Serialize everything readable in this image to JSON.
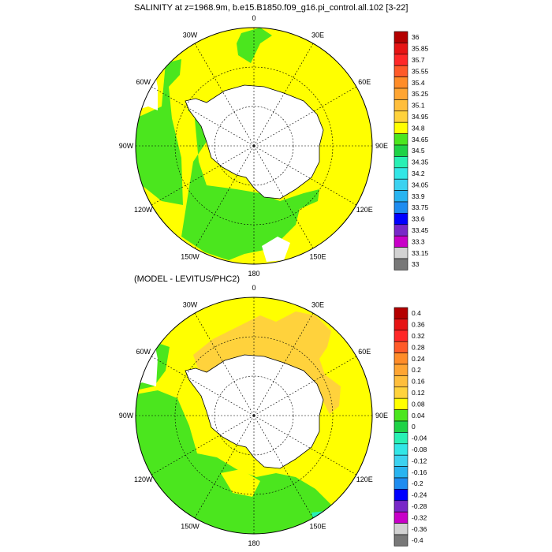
{
  "panels": [
    {
      "title": "SALINITY at z=1968.9m, b.e15.B1850.f09_g16.pi_control.all.102 [3-22]",
      "lon_labels": [
        "0",
        "30E",
        "60E",
        "90E",
        "120E",
        "150E",
        "180",
        "150W",
        "120W",
        "90W",
        "60W",
        "30W"
      ],
      "colorbar": {
        "labels": [
          "36",
          "35.85",
          "35.7",
          "35.55",
          "35.4",
          "35.25",
          "35.1",
          "34.95",
          "34.8",
          "34.65",
          "34.5",
          "34.35",
          "34.2",
          "34.05",
          "33.9",
          "33.75",
          "33.6",
          "33.45",
          "33.3",
          "33.15",
          "33"
        ],
        "colors": [
          "#b40000",
          "#e61414",
          "#ff2828",
          "#ff5a28",
          "#ff8c28",
          "#ffa532",
          "#ffbe3c",
          "#ffd23c",
          "#ffff00",
          "#4be61e",
          "#1ed246",
          "#28f0b4",
          "#32e6e6",
          "#3cd2f0",
          "#28b4f0",
          "#1e8cf0",
          "#0000ff",
          "#7828c8",
          "#c800c8",
          "#d2d2d2",
          "#787878"
        ]
      }
    },
    {
      "title": "(MODEL - LEVITUS/PHC2)",
      "lon_labels": [
        "0",
        "30E",
        "60E",
        "90E",
        "120E",
        "150E",
        "180",
        "150W",
        "120W",
        "90W",
        "60W",
        "30W"
      ],
      "colorbar": {
        "labels": [
          "0.4",
          "0.36",
          "0.32",
          "0.28",
          "0.24",
          "0.2",
          "0.16",
          "0.12",
          "0.08",
          "0.04",
          "0",
          "-0.04",
          "-0.08",
          "-0.12",
          "-0.16",
          "-0.2",
          "-0.24",
          "-0.28",
          "-0.32",
          "-0.36",
          "-0.4"
        ],
        "colors": [
          "#b40000",
          "#e61414",
          "#ff2828",
          "#ff5a28",
          "#ff8c28",
          "#ffa532",
          "#ffbe3c",
          "#ffd23c",
          "#ffff00",
          "#4be61e",
          "#1ed246",
          "#28f0b4",
          "#32e6e6",
          "#3cd2f0",
          "#28b4f0",
          "#1e8cf0",
          "#0000ff",
          "#7828c8",
          "#c800c8",
          "#d2d2d2",
          "#787878"
        ]
      }
    }
  ],
  "chart_data": [
    {
      "type": "heatmap",
      "title": "SALINITY at z=1968.9m, b.e15.B1850.f09_g16.pi_control.all.102 [3-22]",
      "projection": "south polar stereographic",
      "lon_labels": [
        "0",
        "30E",
        "60E",
        "90E",
        "120E",
        "150E",
        "180",
        "150W",
        "120W",
        "90W",
        "60W",
        "30W"
      ],
      "levels": [
        33,
        33.15,
        33.3,
        33.45,
        33.6,
        33.75,
        33.9,
        34.05,
        34.2,
        34.35,
        34.5,
        34.65,
        34.8,
        34.95,
        35.1,
        35.25,
        35.4,
        35.55,
        35.7,
        35.85,
        36
      ],
      "dominant_ranges": [
        "34.65-34.8 (green) south of ~60S in Pacific/Indian sectors",
        "34.8-34.95 (yellow) in Atlantic/Indian outer ring"
      ]
    },
    {
      "type": "heatmap",
      "title": "(MODEL - LEVITUS/PHC2)",
      "projection": "south polar stereographic",
      "lon_labels": [
        "0",
        "30E",
        "60E",
        "90E",
        "120E",
        "150E",
        "180",
        "150W",
        "120W",
        "90W",
        "60W",
        "30W"
      ],
      "levels": [
        -0.4,
        -0.36,
        -0.32,
        -0.28,
        -0.24,
        -0.2,
        -0.16,
        -0.12,
        -0.08,
        -0.04,
        0,
        0.04,
        0.08,
        0.12,
        0.16,
        0.2,
        0.24,
        0.28,
        0.32,
        0.36,
        0.4
      ],
      "dominant_ranges": [
        "0.08-0.12 (yellow) widespread",
        "0.12-0.16 (light orange) Weddell/Enderby sector",
        "0.04-0.08 (green) Pacific sector"
      ]
    }
  ]
}
